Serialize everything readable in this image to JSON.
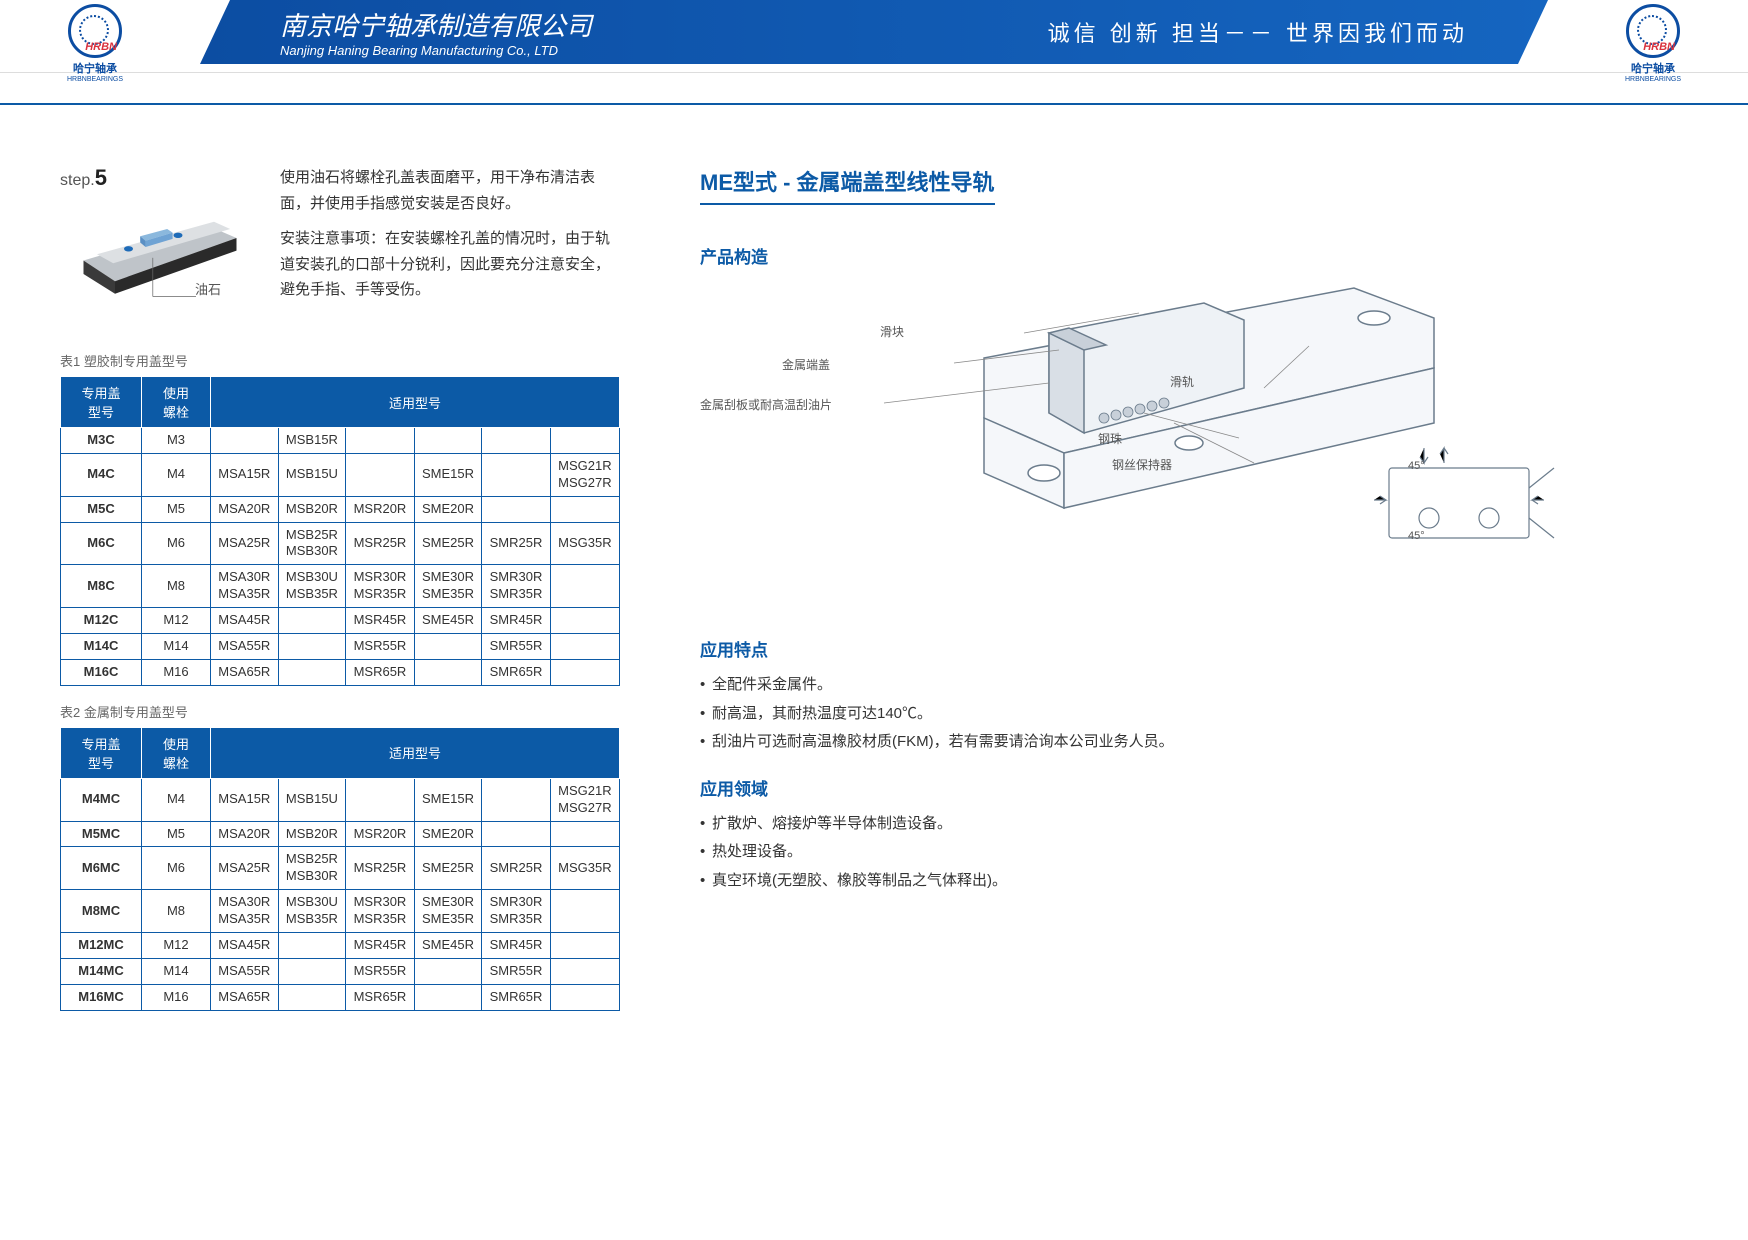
{
  "header": {
    "company_cn": "南京哈宁轴承制造有限公司",
    "company_en": "Nanjing Haning Bearing Manufacturing Co., LTD",
    "slogan": "诚信  创新  担当－－ 世界因我们而动"
  },
  "logo": {
    "cn": "哈宁轴承",
    "en": "HRBNBEARINGS",
    "mark": "HRBN"
  },
  "step": {
    "label_prefix": "step.",
    "num": "5",
    "oil_label": "油石",
    "text1": "使用油石将螺栓孔盖表面磨平，用干净布清洁表面，并使用手指感觉安装是否良好。",
    "text2": "安装注意事项：在安装螺栓孔盖的情况时，由于轨道安装孔的口部十分锐利，因此要充分注意安全，避免手指、手等受伤。"
  },
  "table1": {
    "caption": "表1 塑胶制专用盖型号",
    "h1": "专用盖\n型号",
    "h2": "使用\n螺栓",
    "h3": "适用型号",
    "rows": [
      [
        "M3C",
        "M3",
        "",
        "MSB15R",
        "",
        "",
        "",
        ""
      ],
      [
        "M4C",
        "M4",
        "MSA15R",
        "MSB15U",
        "",
        "SME15R",
        "",
        "MSG21R\nMSG27R"
      ],
      [
        "M5C",
        "M5",
        "MSA20R",
        "MSB20R",
        "MSR20R",
        "SME20R",
        "",
        ""
      ],
      [
        "M6C",
        "M6",
        "MSA25R",
        "MSB25R\nMSB30R",
        "MSR25R",
        "SME25R",
        "SMR25R",
        "MSG35R"
      ],
      [
        "M8C",
        "M8",
        "MSA30R\nMSA35R",
        "MSB30U\nMSB35R",
        "MSR30R\nMSR35R",
        "SME30R\nSME35R",
        "SMR30R\nSMR35R",
        ""
      ],
      [
        "M12C",
        "M12",
        "MSA45R",
        "",
        "MSR45R",
        "SME45R",
        "SMR45R",
        ""
      ],
      [
        "M14C",
        "M14",
        "MSA55R",
        "",
        "MSR55R",
        "",
        "SMR55R",
        ""
      ],
      [
        "M16C",
        "M16",
        "MSA65R",
        "",
        "MSR65R",
        "",
        "SMR65R",
        ""
      ]
    ]
  },
  "table2": {
    "caption": "表2 金属制专用盖型号",
    "rows": [
      [
        "M4MC",
        "M4",
        "MSA15R",
        "MSB15U",
        "",
        "SME15R",
        "",
        "MSG21R\nMSG27R"
      ],
      [
        "M5MC",
        "M5",
        "MSA20R",
        "MSB20R",
        "MSR20R",
        "SME20R",
        "",
        ""
      ],
      [
        "M6MC",
        "M6",
        "MSA25R",
        "MSB25R\nMSB30R",
        "MSR25R",
        "SME25R",
        "SMR25R",
        "MSG35R"
      ],
      [
        "M8MC",
        "M8",
        "MSA30R\nMSA35R",
        "MSB30U\nMSB35R",
        "MSR30R\nMSR35R",
        "SME30R\nSME35R",
        "SMR30R\nSMR35R",
        ""
      ],
      [
        "M12MC",
        "M12",
        "MSA45R",
        "",
        "MSR45R",
        "SME45R",
        "SMR45R",
        ""
      ],
      [
        "M14MC",
        "M14",
        "MSA55R",
        "",
        "MSR55R",
        "",
        "SMR55R",
        ""
      ],
      [
        "M16MC",
        "M16",
        "MSA65R",
        "",
        "MSR65R",
        "",
        "SMR65R",
        ""
      ]
    ]
  },
  "right": {
    "title": "ME型式 - 金属端盖型线性导轨",
    "sec1": "产品构造",
    "sec2": "应用特点",
    "sec3": "应用领域",
    "diagram_labels": {
      "slider": "滑块",
      "rail": "滑轨",
      "endcap": "金属端盖",
      "scraper": "金属刮板或耐高温刮油片",
      "ball": "钢珠",
      "retainer": "钢丝保持器",
      "angle1": "45°",
      "angle2": "45°"
    },
    "features": [
      "全配件采金属件。",
      "耐高温，其耐热温度可达140℃。",
      "刮油片可选耐高温橡胶材质(FKM)，若有需要请洽询本公司业务人员。"
    ],
    "apps": [
      "扩散炉、熔接炉等半导体制造设备。",
      "热处理设备。",
      "真空环境(无塑胶、橡胶等制品之气体释出)。"
    ]
  }
}
